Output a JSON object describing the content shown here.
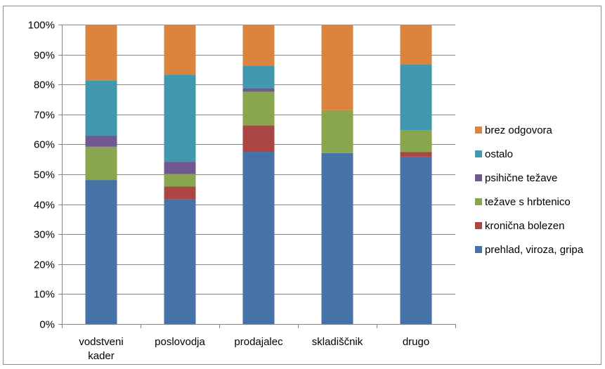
{
  "chart_data": {
    "type": "bar",
    "stacked": true,
    "percent": true,
    "categories": [
      [
        "vodstveni",
        "kader"
      ],
      [
        "poslovodja"
      ],
      [
        "prodajalec"
      ],
      [
        "skladiščnik"
      ],
      [
        "drugo"
      ]
    ],
    "series": [
      {
        "name": "prehlad, viroza, gripa",
        "color": "#4572A7",
        "values": [
          48.1,
          41.7,
          57.5,
          57.1,
          55.9
        ]
      },
      {
        "name": "kronična bolezen",
        "color": "#AA4643",
        "values": [
          0,
          4.2,
          8.8,
          0,
          1.5
        ]
      },
      {
        "name": "težave s hrbtenico",
        "color": "#89A54E",
        "values": [
          11.1,
          4.2,
          11.3,
          14.3,
          7.3
        ]
      },
      {
        "name": "psihične težave",
        "color": "#71588F",
        "values": [
          3.7,
          4.1,
          1.2,
          0,
          0
        ]
      },
      {
        "name": "ostalo",
        "color": "#4198AF",
        "values": [
          18.5,
          29.1,
          7.5,
          0,
          22.1
        ]
      },
      {
        "name": "brez odgovora",
        "color": "#DB843D",
        "values": [
          18.6,
          16.7,
          13.7,
          28.6,
          13.2
        ]
      }
    ],
    "y_ticks": [
      "0%",
      "10%",
      "20%",
      "30%",
      "40%",
      "50%",
      "60%",
      "70%",
      "80%",
      "90%",
      "100%"
    ],
    "ylim": [
      0,
      100
    ],
    "grid": true,
    "legend_position": "right",
    "legend_order": "reverse"
  }
}
